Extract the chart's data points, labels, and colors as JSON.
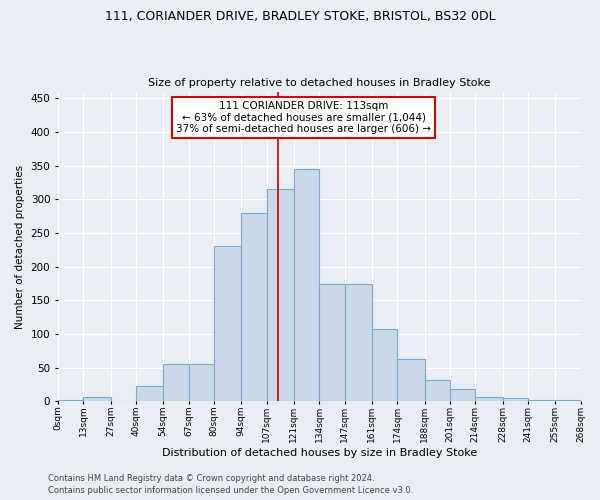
{
  "title": "111, CORIANDER DRIVE, BRADLEY STOKE, BRISTOL, BS32 0DL",
  "subtitle": "Size of property relative to detached houses in Bradley Stoke",
  "xlabel": "Distribution of detached houses by size in Bradley Stoke",
  "ylabel": "Number of detached properties",
  "bin_edges": [
    0,
    13,
    27,
    40,
    54,
    67,
    80,
    94,
    107,
    121,
    134,
    147,
    161,
    174,
    188,
    201,
    214,
    228,
    241,
    255,
    268
  ],
  "bar_heights": [
    2,
    6,
    0,
    23,
    55,
    55,
    230,
    280,
    315,
    345,
    175,
    175,
    108,
    63,
    32,
    18,
    6,
    5,
    2,
    2
  ],
  "bar_color": "#c9d9e8",
  "bar_edge_color": "#7aaac8",
  "property_size": 113,
  "annotation_title": "111 CORIANDER DRIVE: 113sqm",
  "annotation_line1": "← 63% of detached houses are smaller (1,044)",
  "annotation_line2": "37% of semi-detached houses are larger (606) →",
  "vline_color": "#cc0000",
  "annotation_box_color": "#ffffff",
  "annotation_box_edge": "#cc0000",
  "footer1": "Contains HM Land Registry data © Crown copyright and database right 2024.",
  "footer2": "Contains public sector information licensed under the Open Government Licence v3.0.",
  "bg_color": "#e8eef4",
  "plot_bg_color": "#e8eef4",
  "ylim": [
    0,
    460
  ],
  "yticks": [
    0,
    50,
    100,
    150,
    200,
    250,
    300,
    350,
    400,
    450
  ]
}
